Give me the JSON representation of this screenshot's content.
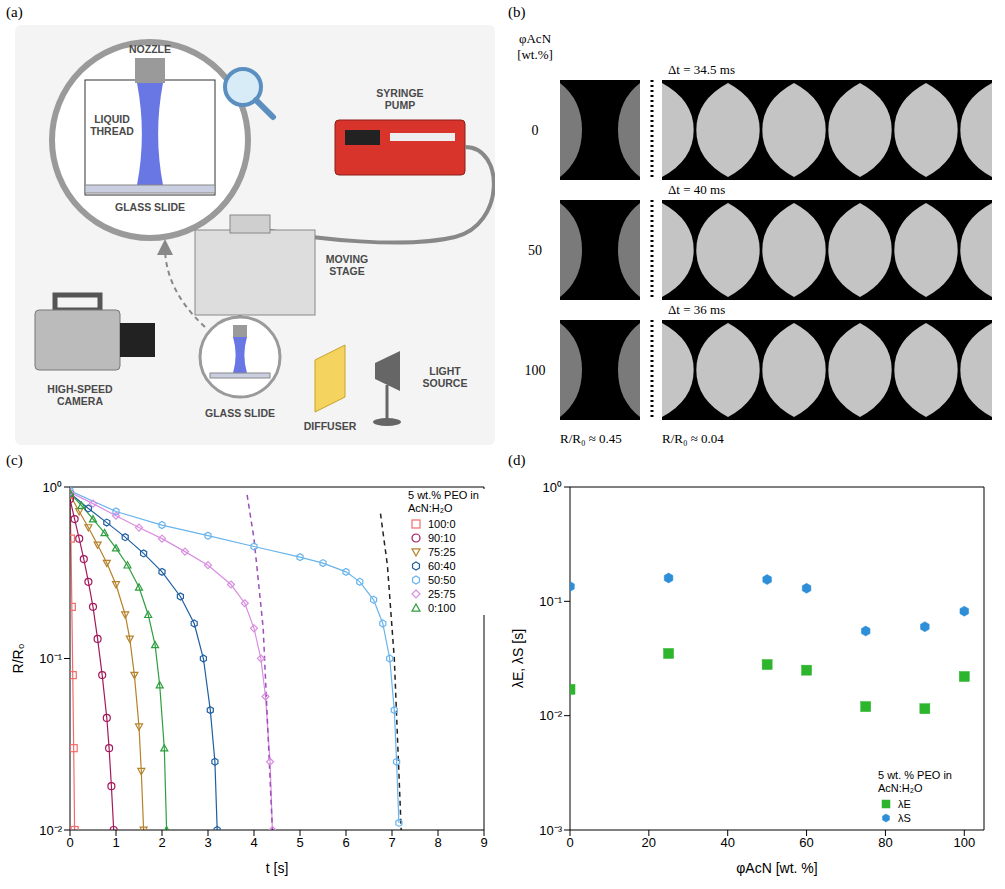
{
  "panels": {
    "a": {
      "letter": "(a)",
      "labels": {
        "nozzle": "NOZZLE",
        "liquid_thread": "LIQUID THREAD",
        "glass_slide_zoom": "GLASS SLIDE",
        "syringe_pump": "SYRINGE PUMP",
        "moving_stage": "MOVING STAGE",
        "high_speed_camera": "HIGH-SPEED CAMERA",
        "glass_slide": "GLASS SLIDE",
        "diffuser": "DIFFUSER",
        "light_source": "LIGHT SOURCE"
      }
    },
    "b": {
      "letter": "(b)",
      "header": [
        "φAcN",
        "[wt.%]"
      ],
      "rows": [
        {
          "phi": 0,
          "dt_label": "Δt = 34.5 ms"
        },
        {
          "phi": 50,
          "dt_label": "Δt = 40 ms"
        },
        {
          "phi": 100,
          "dt_label": "Δt = 36 ms"
        }
      ],
      "before": {
        "value": 0.45,
        "label": "R/R₀ ≈ 0.45"
      },
      "after": {
        "value": 0.04,
        "label": "R/R₀ ≈ 0.04"
      }
    }
  },
  "chart_data": [
    {
      "letter": "(c)",
      "type": "line",
      "xlabel": "t [s]",
      "ylabel": "R/R₀",
      "xlim": [
        0,
        9
      ],
      "xticks": [
        0,
        1,
        2,
        3,
        4,
        5,
        6,
        7,
        8,
        9
      ],
      "ylim": [
        0.01,
        1
      ],
      "yticks": [
        {
          "value": 0.01,
          "label": "10⁻²"
        },
        {
          "value": 0.1,
          "label": "10⁻¹"
        },
        {
          "value": 1,
          "label": "10⁰"
        }
      ],
      "log": "y",
      "legend": "upper right",
      "legend_title": "5 wt.% PEO in AcN:H₂O",
      "series": [
        {
          "name": "100:0",
          "color": "#f26b6b",
          "marker": "square",
          "x": [
            0,
            0.02,
            0.04,
            0.06,
            0.08,
            0.1
          ],
          "values": [
            0.9,
            0.5,
            0.2,
            0.08,
            0.03,
            0.01
          ]
        },
        {
          "name": "90:10",
          "color": "#a3195b",
          "marker": "circle",
          "x": [
            0,
            0.1,
            0.2,
            0.3,
            0.4,
            0.5,
            0.6,
            0.7,
            0.8,
            0.85,
            0.9,
            0.95
          ],
          "values": [
            0.85,
            0.65,
            0.5,
            0.38,
            0.28,
            0.2,
            0.13,
            0.08,
            0.045,
            0.03,
            0.018,
            0.01
          ]
        },
        {
          "name": "75:25",
          "color": "#b5822a",
          "marker": "triangle_down",
          "x": [
            0,
            0.2,
            0.4,
            0.6,
            0.8,
            1.0,
            1.2,
            1.3,
            1.4,
            1.5,
            1.55,
            1.6
          ],
          "values": [
            0.9,
            0.72,
            0.58,
            0.46,
            0.36,
            0.27,
            0.18,
            0.13,
            0.08,
            0.04,
            0.022,
            0.01
          ]
        },
        {
          "name": "60:40",
          "color": "#1f5fa0",
          "marker": "hexagon",
          "x": [
            0,
            0.4,
            0.8,
            1.2,
            1.6,
            2.0,
            2.4,
            2.7,
            2.9,
            3.05,
            3.15,
            3.2
          ],
          "values": [
            0.92,
            0.75,
            0.62,
            0.51,
            0.41,
            0.32,
            0.23,
            0.16,
            0.1,
            0.05,
            0.025,
            0.01
          ]
        },
        {
          "name": "50:50",
          "color": "#69b4ec",
          "marker": "hexagon",
          "x": [
            0,
            1,
            2,
            3,
            4,
            5,
            5.5,
            6,
            6.3,
            6.6,
            6.8,
            6.95,
            7.05,
            7.1,
            7.15
          ],
          "values": [
            0.95,
            0.72,
            0.6,
            0.52,
            0.45,
            0.39,
            0.36,
            0.32,
            0.28,
            0.22,
            0.16,
            0.1,
            0.05,
            0.025,
            0.011
          ]
        },
        {
          "name": "25:75",
          "color": "#d98ee0",
          "marker": "diamond",
          "x": [
            0,
            0.5,
            1,
            1.5,
            2,
            2.5,
            3,
            3.5,
            3.8,
            4.0,
            4.15,
            4.25,
            4.35,
            4.4
          ],
          "values": [
            0.93,
            0.8,
            0.68,
            0.58,
            0.5,
            0.42,
            0.35,
            0.27,
            0.21,
            0.15,
            0.1,
            0.06,
            0.025,
            0.01
          ]
        },
        {
          "name": "0:100",
          "color": "#2e9e3e",
          "marker": "triangle",
          "x": [
            0,
            0.25,
            0.5,
            0.75,
            1.0,
            1.25,
            1.5,
            1.7,
            1.85,
            1.95,
            2.05,
            2.1
          ],
          "values": [
            0.92,
            0.78,
            0.65,
            0.54,
            0.44,
            0.35,
            0.26,
            0.18,
            0.12,
            0.07,
            0.03,
            0.01
          ]
        }
      ],
      "fits": [
        {
          "color": "#9b4fb7",
          "line_style": "dashed",
          "x": [
            3.85,
            4.0,
            4.2,
            4.4
          ],
          "values": [
            0.9,
            0.5,
            0.15,
            0.01
          ]
        },
        {
          "color": "#222222",
          "line_style": "dashed",
          "x": [
            6.75,
            6.9,
            7.05,
            7.2
          ],
          "values": [
            0.7,
            0.35,
            0.1,
            0.01
          ]
        }
      ]
    },
    {
      "letter": "(d)",
      "type": "scatter",
      "xlabel": "φAcN [wt. %]",
      "ylabel": "λE, λS [s]",
      "xlim": [
        0,
        105
      ],
      "xticks": [
        0,
        20,
        40,
        60,
        80,
        100
      ],
      "ylim": [
        0.001,
        1
      ],
      "yticks": [
        {
          "value": 0.001,
          "label": "10⁻³"
        },
        {
          "value": 0.01,
          "label": "10⁻²"
        },
        {
          "value": 0.1,
          "label": "10⁻¹"
        },
        {
          "value": 1,
          "label": "10⁰"
        }
      ],
      "log": "y",
      "legend": "lower right",
      "legend_title": "5 wt. % PEO in AcN:H₂O",
      "series": [
        {
          "name": "λE",
          "color": "#2db52d",
          "marker": "square",
          "x": [
            0,
            25,
            50,
            60,
            75,
            90,
            100
          ],
          "values": [
            0.017,
            0.035,
            0.028,
            0.025,
            0.012,
            0.0115,
            0.022
          ]
        },
        {
          "name": "λS",
          "color": "#2e8fd8",
          "marker": "hexagon",
          "x": [
            0,
            25,
            50,
            60,
            75,
            90,
            100
          ],
          "values": [
            0.135,
            0.16,
            0.155,
            0.13,
            0.055,
            0.06,
            0.082
          ]
        }
      ]
    }
  ]
}
